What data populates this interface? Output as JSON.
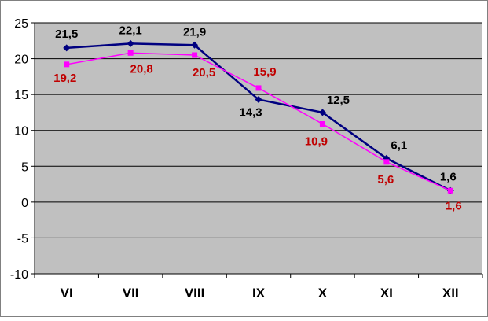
{
  "chart_data": {
    "type": "line",
    "categories": [
      "VI",
      "VII",
      "VIII",
      "IX",
      "X",
      "XI",
      "XII"
    ],
    "series": [
      {
        "values": [
          21.5,
          22.1,
          21.9,
          14.3,
          12.5,
          6.1,
          1.6
        ],
        "labels": [
          "21,5",
          "22,1",
          "21,9",
          "14,3",
          "12,5",
          "6,1",
          "1,6"
        ],
        "color": "#000080",
        "label_color": "#000000",
        "marker": "diamond"
      },
      {
        "values": [
          19.2,
          20.8,
          20.5,
          15.9,
          10.9,
          5.6,
          1.6
        ],
        "labels": [
          "19,2",
          "20,8",
          "20,5",
          "15,9",
          "10,9",
          "5,6",
          "1,6"
        ],
        "color": "#ff00ff",
        "label_color": "#c00000",
        "marker": "square"
      }
    ],
    "ylim": [
      -10,
      25
    ],
    "yticks": [
      -10,
      -5,
      0,
      5,
      10,
      15,
      20,
      25
    ],
    "title": "",
    "xlabel": "",
    "ylabel": "",
    "grid": true,
    "legend": "none",
    "plot_background": "#c0c0c0"
  }
}
